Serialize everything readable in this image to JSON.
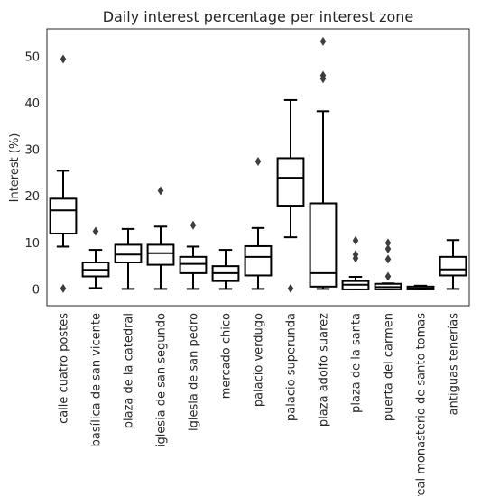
{
  "chart_data": {
    "type": "boxplot",
    "title": "Daily interest percentage per interest zone",
    "xlabel": "",
    "ylabel": "Interest (%)",
    "ylim": [
      -3.5,
      56
    ],
    "yticks": [
      0,
      10,
      20,
      30,
      40,
      50
    ],
    "grid": false,
    "categories": [
      "calle cuatro postes",
      "basílica de san vicente",
      "plaza de la catedral",
      "iglesia de san segundo",
      "iglesia de san pedro",
      "mercado chico",
      "palacio verdugo",
      "palacio superunda",
      "plaza adolfo suarez",
      "plaza de la santa",
      "puerta del carmen",
      "real monasterio de santo tomas",
      "antiguas tenerías"
    ],
    "boxes": [
      {
        "whislo": 9.2,
        "q1": 12.0,
        "med": 17.0,
        "q3": 19.5,
        "whishi": 25.5,
        "fliers": [
          49.5,
          0.2
        ]
      },
      {
        "whislo": 0.3,
        "q1": 2.8,
        "med": 4.2,
        "q3": 5.8,
        "whishi": 8.5,
        "fliers": [
          12.5
        ]
      },
      {
        "whislo": 0.1,
        "q1": 5.8,
        "med": 7.5,
        "q3": 9.6,
        "whishi": 13.0,
        "fliers": []
      },
      {
        "whislo": 0.1,
        "q1": 5.3,
        "med": 7.8,
        "q3": 9.6,
        "whishi": 13.5,
        "fliers": [
          21.2
        ]
      },
      {
        "whislo": 0.1,
        "q1": 3.5,
        "med": 5.5,
        "q3": 7.0,
        "whishi": 9.2,
        "fliers": [
          13.8
        ]
      },
      {
        "whislo": 0.1,
        "q1": 1.8,
        "med": 3.5,
        "q3": 5.0,
        "whishi": 8.5,
        "fliers": []
      },
      {
        "whislo": 0.1,
        "q1": 3.0,
        "med": 7.0,
        "q3": 9.3,
        "whishi": 13.2,
        "fliers": [
          27.5
        ]
      },
      {
        "whislo": 11.2,
        "q1": 18.0,
        "med": 24.0,
        "q3": 28.2,
        "whishi": 40.7,
        "fliers": [
          0.2
        ]
      },
      {
        "whislo": 0.1,
        "q1": 0.6,
        "med": 3.5,
        "q3": 18.5,
        "whishi": 38.3,
        "fliers": [
          53.3,
          46.0,
          45.3
        ]
      },
      {
        "whislo": 0.0,
        "q1": 0.0,
        "med": 1.0,
        "q3": 1.8,
        "whishi": 2.7,
        "fliers": [
          10.5,
          7.5,
          6.7
        ]
      },
      {
        "whislo": 0.0,
        "q1": 0.0,
        "med": 0.5,
        "q3": 1.2,
        "whishi": 1.3,
        "fliers": [
          10.0,
          8.7,
          6.5,
          2.8
        ]
      },
      {
        "whislo": 0.0,
        "q1": 0.0,
        "med": 0.2,
        "q3": 0.6,
        "whishi": 0.8,
        "fliers": []
      },
      {
        "whislo": 0.1,
        "q1": 3.0,
        "med": 4.3,
        "q3": 7.0,
        "whishi": 10.6,
        "fliers": []
      }
    ]
  }
}
